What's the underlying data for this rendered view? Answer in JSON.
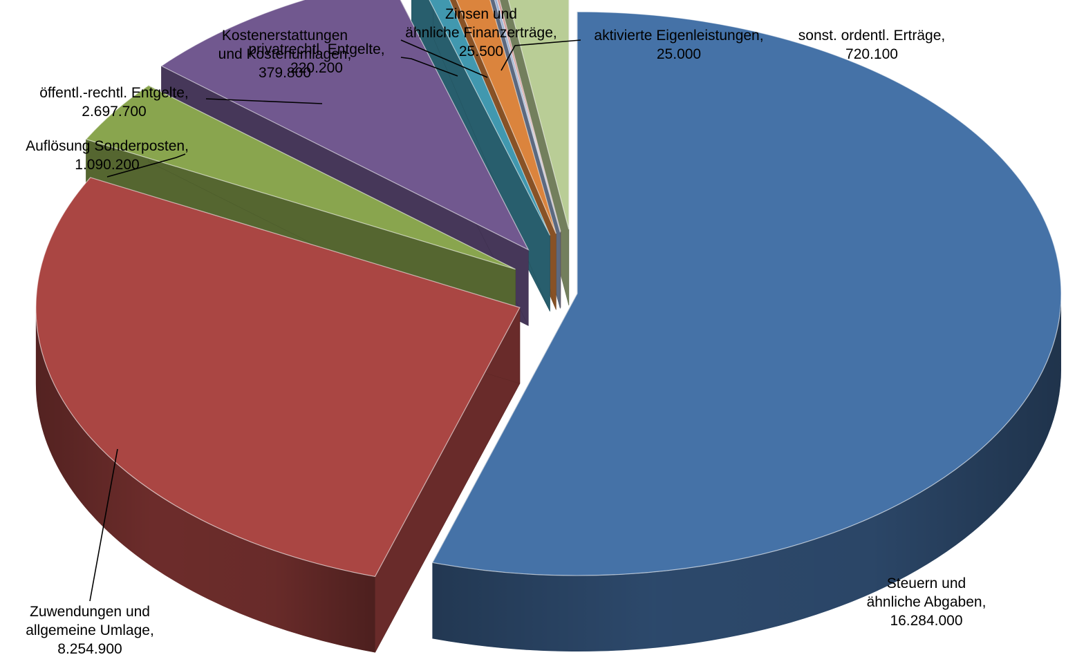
{
  "chart_data": {
    "type": "pie",
    "variant": "3d-exploded",
    "title": "",
    "legend": "none",
    "slices": [
      {
        "name": "Steuern und ähnliche Abgaben",
        "value": 16284000,
        "label_lines": [
          "Steuern und",
          "ähnliche Abgaben,",
          "16.284.000"
        ],
        "color": "#4572A7"
      },
      {
        "name": "Zuwendungen und allgemeine Umlage",
        "value": 8254900,
        "label_lines": [
          "Zuwendungen und",
          "allgemeine Umlage,",
          "8.254.900"
        ],
        "color": "#AA4643"
      },
      {
        "name": "Auflösung Sonderposten",
        "value": 1090200,
        "label_lines": [
          "Auflösung Sonderposten,",
          "1.090.200"
        ],
        "color": "#89A54E"
      },
      {
        "name": "öffentl.-rechtl. Entgelte",
        "value": 2697700,
        "label_lines": [
          "öffentl.-rechtl. Entgelte,",
          "2.697.700"
        ],
        "color": "#71588F"
      },
      {
        "name": "privatrechtl. Entgelte",
        "value": 220200,
        "label_lines": [
          "privatrechtl. Entgelte,",
          "220.200"
        ],
        "color": "#4198AF"
      },
      {
        "name": "Kostenerstattungen und Kostenumlagen",
        "value": 379800,
        "label_lines": [
          "Kostenerstattungen",
          "und Kostenumlagen,",
          "379.800"
        ],
        "color": "#DB843D"
      },
      {
        "name": "Zinsen und ähnliche Finanzerträge",
        "value": 25500,
        "label_lines": [
          "Zinsen und",
          "ähnliche Finanzerträge,",
          "25.500"
        ],
        "color": "#93A9CF"
      },
      {
        "name": "aktivierte Eigenleistungen",
        "value": 25000,
        "label_lines": [
          "aktivierte Eigenleistungen,",
          "25.000"
        ],
        "color": "#D19392"
      },
      {
        "name": "sonst. ordentl. Erträge",
        "value": 720100,
        "label_lines": [
          "sonst. ordentl. Erträge,",
          "720.100"
        ],
        "color": "#B9CD96"
      }
    ]
  }
}
